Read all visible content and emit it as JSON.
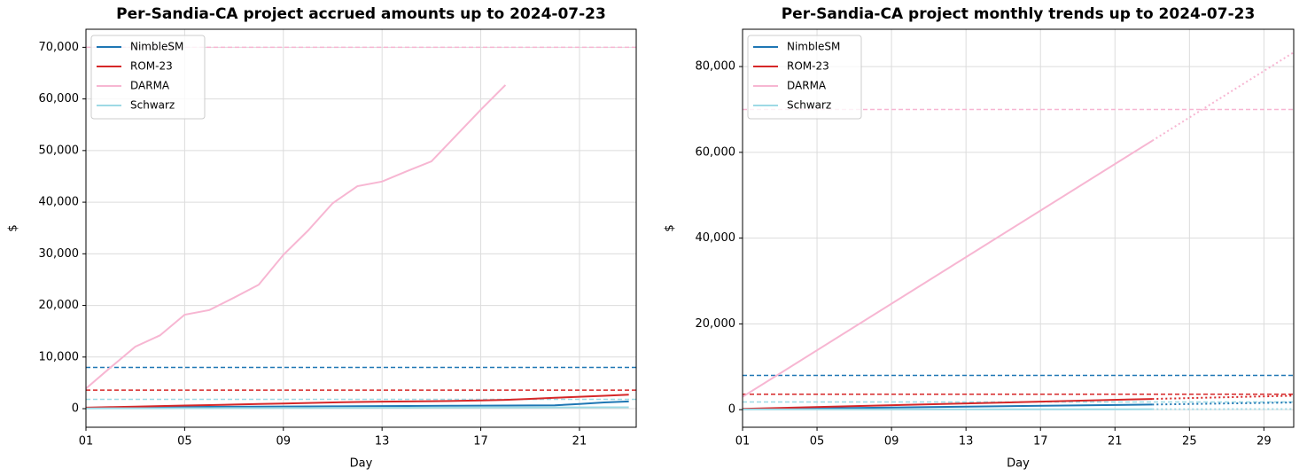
{
  "chart_data": [
    {
      "type": "line",
      "title": "Per-Sandia-CA project accrued amounts up to 2024-07-23",
      "xlabel": "Day",
      "ylabel": "$",
      "grid": true,
      "legend": "upper left",
      "x": [
        1,
        2,
        3,
        4,
        5,
        6,
        7,
        8,
        9,
        10,
        11,
        12,
        13,
        14,
        15,
        16,
        17,
        18,
        19,
        20,
        21,
        22,
        23
      ],
      "xlim": [
        1,
        23.3
      ],
      "xticks": [
        {
          "value": 1,
          "label": "01"
        },
        {
          "value": 5,
          "label": "05"
        },
        {
          "value": 9,
          "label": "09"
        },
        {
          "value": 13,
          "label": "13"
        },
        {
          "value": 17,
          "label": "17"
        },
        {
          "value": 21,
          "label": "21"
        }
      ],
      "ylim": [
        -3600,
        73500
      ],
      "yticks": [
        0,
        {
          "value": 10000,
          "label": "10,000"
        },
        {
          "value": 20000,
          "label": "20,000"
        },
        {
          "value": 30000,
          "label": "30,000"
        },
        {
          "value": 40000,
          "label": "40,000"
        },
        {
          "value": 50000,
          "label": "50,000"
        },
        {
          "value": 60000,
          "label": "60,000"
        },
        {
          "value": 70000,
          "label": "70,000"
        }
      ],
      "series": [
        {
          "name": "NimbleSM",
          "color": "#1f77b4",
          "budget": 8000,
          "values": [
            150,
            200,
            250,
            300,
            320,
            350,
            380,
            400,
            420,
            440,
            460,
            480,
            500,
            520,
            540,
            560,
            580,
            600,
            620,
            650,
            900,
            1200,
            1400
          ]
        },
        {
          "name": "ROM-23",
          "color": "#d62728",
          "budget": 3600,
          "values": [
            200,
            300,
            400,
            500,
            600,
            700,
            800,
            900,
            1000,
            1100,
            1200,
            1300,
            1350,
            1400,
            1450,
            1500,
            1600,
            1700,
            1900,
            2100,
            2300,
            2500,
            2700
          ]
        },
        {
          "name": "DARMA",
          "color": "#f7b6d2",
          "budget": 70000,
          "values": [
            3900,
            8000,
            12000,
            14200,
            18200,
            19100,
            21500,
            24000,
            29800,
            34500,
            39800,
            43100,
            44000,
            46000,
            47900,
            52900,
            57900,
            62700,
            null,
            null,
            null,
            null,
            null
          ]
        },
        {
          "name": "Schwarz",
          "color": "#9edae5",
          "budget": 1800,
          "values": [
            50,
            60,
            70,
            80,
            90,
            100,
            110,
            120,
            130,
            140,
            150,
            160,
            170,
            180,
            190,
            200,
            210,
            220,
            230,
            240,
            250,
            260,
            270
          ]
        }
      ]
    },
    {
      "type": "trend",
      "title": "Per-Sandia-CA project monthly trends up to 2024-07-23",
      "xlabel": "Day",
      "ylabel": "$",
      "grid": true,
      "legend": "upper left",
      "trend_x": [
        1,
        23
      ],
      "projection_x": [
        23,
        31
      ],
      "xlim": [
        1,
        30.6
      ],
      "xticks": [
        {
          "value": 1,
          "label": "01"
        },
        {
          "value": 5,
          "label": "05"
        },
        {
          "value": 9,
          "label": "09"
        },
        {
          "value": 13,
          "label": "13"
        },
        {
          "value": 17,
          "label": "17"
        },
        {
          "value": 21,
          "label": "21"
        },
        {
          "value": 25,
          "label": "25"
        },
        {
          "value": 29,
          "label": "29"
        }
      ],
      "ylim": [
        -4100,
        88700
      ],
      "yticks": [
        0,
        {
          "value": 20000,
          "label": "20,000"
        },
        {
          "value": 40000,
          "label": "40,000"
        },
        {
          "value": 60000,
          "label": "60,000"
        },
        {
          "value": 80000,
          "label": "80,000"
        }
      ],
      "series": [
        {
          "name": "NimbleSM",
          "color": "#1f77b4",
          "budget": 8000,
          "trend": [
            100,
            1200
          ],
          "projection": [
            1200,
            1700
          ]
        },
        {
          "name": "ROM-23",
          "color": "#d62728",
          "budget": 3600,
          "trend": [
            200,
            2500
          ],
          "projection": [
            2500,
            3300
          ]
        },
        {
          "name": "DARMA",
          "color": "#f7b6d2",
          "budget": 70000,
          "trend": [
            3000,
            62700
          ],
          "projection": [
            62700,
            84400
          ]
        },
        {
          "name": "Schwarz",
          "color": "#9edae5",
          "budget": 1800,
          "trend": [
            50,
            100
          ],
          "projection": [
            100,
            150
          ]
        }
      ]
    }
  ]
}
